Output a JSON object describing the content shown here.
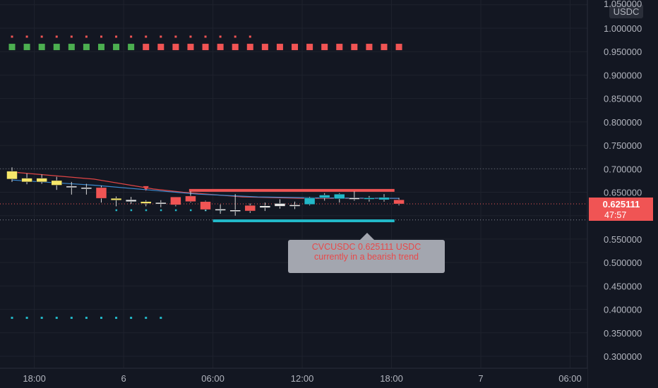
{
  "chart_data": {
    "type": "candlestick",
    "symbol_currency": "USDC",
    "last_price": "0.625111",
    "countdown": "47:57",
    "ylim": [
      0.28,
      1.05
    ],
    "y_ticks": [
      "1.000000",
      "0.950000",
      "0.900000",
      "0.850000",
      "0.800000",
      "0.750000",
      "0.700000",
      "0.650000",
      "0.550000",
      "0.500000",
      "0.450000",
      "0.400000",
      "0.350000",
      "0.300000"
    ],
    "y_tick_values": [
      1.0,
      0.95,
      0.9,
      0.85,
      0.8,
      0.75,
      0.7,
      0.65,
      0.55,
      0.5,
      0.45,
      0.4,
      0.35,
      0.3
    ],
    "x_ticks": [
      "18:00",
      "6",
      "06:00",
      "12:00",
      "18:00",
      "7",
      "06:00"
    ],
    "x_tick_hours": [
      -2,
      4,
      10,
      16,
      22,
      28,
      34
    ],
    "hours_range": [
      -3.5,
      35.5
    ],
    "candles": [
      {
        "t": -3.5,
        "o": 0.695,
        "h": 0.703,
        "l": 0.672,
        "c": 0.678,
        "color": "yellow"
      },
      {
        "t": -2.5,
        "o": 0.68,
        "h": 0.69,
        "l": 0.667,
        "c": 0.672,
        "color": "yellow"
      },
      {
        "t": -1.5,
        "o": 0.68,
        "h": 0.688,
        "l": 0.668,
        "c": 0.672,
        "color": "yellow"
      },
      {
        "t": -0.5,
        "o": 0.675,
        "h": 0.683,
        "l": 0.655,
        "c": 0.665,
        "color": "yellow"
      },
      {
        "t": 0.5,
        "o": 0.663,
        "h": 0.672,
        "l": 0.645,
        "c": 0.66,
        "color": "white"
      },
      {
        "t": 1.5,
        "o": 0.66,
        "h": 0.668,
        "l": 0.645,
        "c": 0.659,
        "color": "white"
      },
      {
        "t": 2.5,
        "o": 0.66,
        "h": 0.664,
        "l": 0.628,
        "c": 0.637,
        "color": "red"
      },
      {
        "t": 3.5,
        "o": 0.637,
        "h": 0.641,
        "l": 0.62,
        "c": 0.633,
        "color": "yellow"
      },
      {
        "t": 4.5,
        "o": 0.634,
        "h": 0.64,
        "l": 0.625,
        "c": 0.63,
        "color": "white"
      },
      {
        "t": 5.5,
        "o": 0.63,
        "h": 0.633,
        "l": 0.62,
        "c": 0.626,
        "color": "yellow"
      },
      {
        "t": 6.5,
        "o": 0.628,
        "h": 0.633,
        "l": 0.618,
        "c": 0.625,
        "color": "white"
      },
      {
        "t": 7.5,
        "o": 0.64,
        "h": 0.64,
        "l": 0.62,
        "c": 0.623,
        "color": "red"
      },
      {
        "t": 8.5,
        "o": 0.642,
        "h": 0.652,
        "l": 0.628,
        "c": 0.63,
        "color": "red"
      },
      {
        "t": 9.5,
        "o": 0.63,
        "h": 0.632,
        "l": 0.61,
        "c": 0.613,
        "color": "red"
      },
      {
        "t": 10.5,
        "o": 0.614,
        "h": 0.624,
        "l": 0.604,
        "c": 0.614,
        "color": "white"
      },
      {
        "t": 11.5,
        "o": 0.612,
        "h": 0.646,
        "l": 0.6,
        "c": 0.61,
        "color": "white"
      },
      {
        "t": 12.5,
        "o": 0.622,
        "h": 0.626,
        "l": 0.606,
        "c": 0.61,
        "color": "red"
      },
      {
        "t": 13.5,
        "o": 0.617,
        "h": 0.628,
        "l": 0.61,
        "c": 0.621,
        "color": "white"
      },
      {
        "t": 14.5,
        "o": 0.62,
        "h": 0.635,
        "l": 0.615,
        "c": 0.626,
        "color": "white"
      },
      {
        "t": 15.5,
        "o": 0.622,
        "h": 0.63,
        "l": 0.614,
        "c": 0.623,
        "color": "white"
      },
      {
        "t": 16.5,
        "o": 0.624,
        "h": 0.64,
        "l": 0.622,
        "c": 0.638,
        "color": "cyan"
      },
      {
        "t": 17.5,
        "o": 0.638,
        "h": 0.648,
        "l": 0.632,
        "c": 0.644,
        "color": "cyan"
      },
      {
        "t": 18.5,
        "o": 0.636,
        "h": 0.648,
        "l": 0.628,
        "c": 0.646,
        "color": "cyan"
      },
      {
        "t": 19.5,
        "o": 0.637,
        "h": 0.652,
        "l": 0.632,
        "c": 0.638,
        "color": "white"
      },
      {
        "t": 20.5,
        "o": 0.636,
        "h": 0.642,
        "l": 0.63,
        "c": 0.638,
        "color": "cyan"
      },
      {
        "t": 21.5,
        "o": 0.634,
        "h": 0.646,
        "l": 0.63,
        "c": 0.639,
        "color": "cyan"
      },
      {
        "t": 22.5,
        "o": 0.634,
        "h": 0.638,
        "l": 0.622,
        "c": 0.625,
        "color": "red"
      }
    ],
    "ma_red": [
      [
        -3.5,
        0.693
      ],
      [
        2,
        0.678
      ],
      [
        6,
        0.657
      ],
      [
        8,
        0.65
      ],
      [
        12,
        0.64
      ],
      [
        16,
        0.637
      ],
      [
        22.5,
        0.637
      ]
    ],
    "ma_blue": [
      [
        -3.5,
        0.676
      ],
      [
        2,
        0.665
      ],
      [
        6,
        0.654
      ],
      [
        9,
        0.646
      ],
      [
        13,
        0.64
      ],
      [
        17,
        0.638
      ],
      [
        22.5,
        0.637
      ]
    ],
    "resistance": {
      "value": 0.654,
      "from": 8.4,
      "to": 22.2
    },
    "support": {
      "value": 0.589,
      "from": 10.0,
      "to": 22.2
    },
    "hline_upper": 0.7,
    "hline_lower": 0.591,
    "marker_top_dots": {
      "value": 0.982,
      "from": -3.5,
      "to": 12.5
    },
    "marker_squares": {
      "value": 0.96,
      "green_from": -3.5,
      "green_to": 4.5,
      "red_from": 5.5,
      "red_to": 22.5
    },
    "marker_cyan_dots": {
      "value": 0.382,
      "from": -3.5,
      "to": 6.5
    },
    "marker_below_dots": {
      "value": 0.612,
      "from": 3.5,
      "to": 10.5
    },
    "sell_arrow": {
      "t": 5.5,
      "value": 0.657
    },
    "tooltip": {
      "line1": "CVCUSDC 0.625111 USDC",
      "line2": "currently in a bearish trend"
    }
  },
  "colors": {
    "background": "#131722",
    "grid": "#1e222d",
    "green": "#4caf50",
    "red": "#f05454",
    "cyan": "#22b8c8",
    "yellow": "#f5e66a",
    "ma_red": "#e04545",
    "ma_blue": "#3d8bd0"
  }
}
